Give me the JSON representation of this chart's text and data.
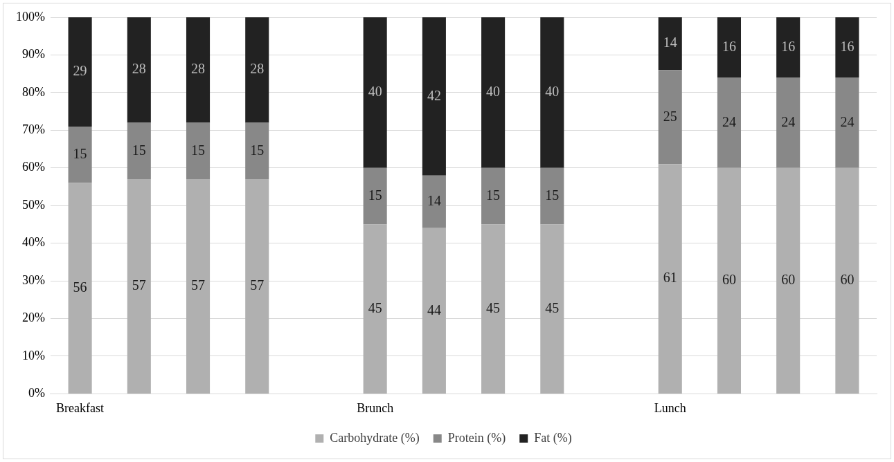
{
  "chart_data": {
    "type": "bar",
    "stacked": true,
    "categories": [
      "Breakfast",
      null,
      null,
      null,
      null,
      "Brunch",
      null,
      null,
      null,
      null,
      "Lunch",
      null,
      null,
      null
    ],
    "series": [
      {
        "name": "Carbohydrate (%)",
        "color": "#b0b0b0",
        "values": [
          56,
          57,
          57,
          57,
          null,
          45,
          44,
          45,
          45,
          null,
          61,
          60,
          60,
          60
        ]
      },
      {
        "name": "Protein (%)",
        "color": "#888888",
        "values": [
          15,
          15,
          15,
          15,
          null,
          15,
          14,
          15,
          15,
          null,
          25,
          24,
          24,
          24
        ]
      },
      {
        "name": "Fat (%)",
        "color": "#222222",
        "values": [
          29,
          28,
          28,
          28,
          null,
          40,
          42,
          40,
          40,
          null,
          14,
          16,
          16,
          16
        ]
      }
    ],
    "ylim": [
      0,
      100
    ],
    "yticks": [
      {
        "value": 0,
        "label": "0%"
      },
      {
        "value": 10,
        "label": "10%"
      },
      {
        "value": 20,
        "label": "20%"
      },
      {
        "value": 30,
        "label": "30%"
      },
      {
        "value": 40,
        "label": "40%"
      },
      {
        "value": 50,
        "label": "50%"
      },
      {
        "value": 60,
        "label": "60%"
      },
      {
        "value": 70,
        "label": "70%"
      },
      {
        "value": 80,
        "label": "80%"
      },
      {
        "value": 90,
        "label": "90%"
      },
      {
        "value": 100,
        "label": "100%"
      }
    ],
    "grid": "y",
    "legend": "bottom",
    "data_labels": true
  }
}
